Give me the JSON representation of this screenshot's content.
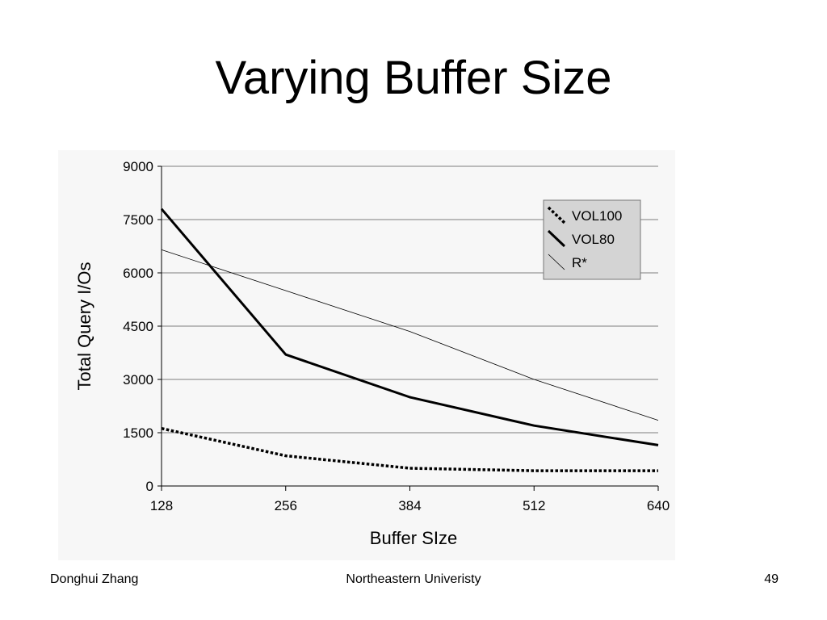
{
  "slide": {
    "title": "Varying Buffer Size",
    "footer_left": "Donghui Zhang",
    "footer_center": "Northeastern Univeristy",
    "footer_right": "49"
  },
  "chart_data": {
    "type": "line",
    "title": "",
    "xlabel": "Buffer SIze",
    "ylabel": "Total Query I/Os",
    "x": [
      128,
      256,
      384,
      512,
      640
    ],
    "xticks": [
      "128",
      "256",
      "384",
      "512",
      "640"
    ],
    "yticks": [
      "0",
      "1500",
      "3000",
      "4500",
      "6000",
      "7500",
      "9000"
    ],
    "ylim": [
      0,
      9000
    ],
    "xlim": [
      128,
      640
    ],
    "grid": "horizontal",
    "legend_position": "top-right",
    "series": [
      {
        "name": "VOL100",
        "style": "dotted",
        "stroke": "#000000",
        "width": 3.5,
        "values": [
          1620,
          850,
          500,
          430,
          430
        ]
      },
      {
        "name": "VOL80",
        "style": "solid",
        "stroke": "#000000",
        "width": 3,
        "values": [
          7800,
          3700,
          2500,
          1700,
          1150
        ]
      },
      {
        "name": "R*",
        "style": "thin",
        "stroke": "#000000",
        "width": 0.8,
        "values": [
          6650,
          5500,
          4350,
          3000,
          1850
        ]
      }
    ]
  }
}
